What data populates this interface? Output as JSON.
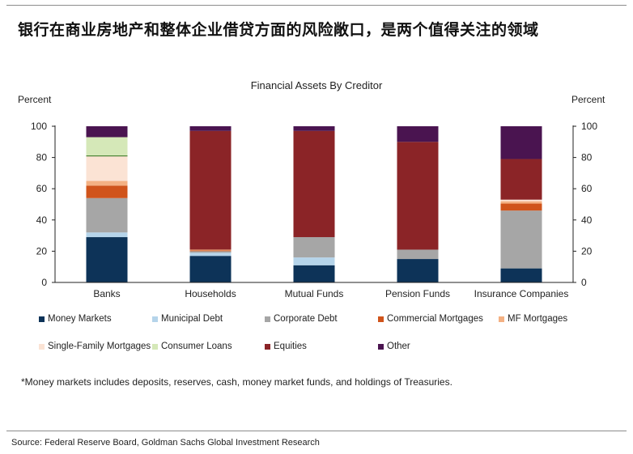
{
  "page": {
    "title": "银行在商业房地产和整体企业借贷方面的风险敞口，是两个值得关注的领域",
    "footnote": "*Money markets includes deposits, reserves, cash, money market funds, and holdings of Treasuries.",
    "source": "Source: Federal Reserve Board, Goldman Sachs Global Investment Research"
  },
  "chart_data": {
    "type": "bar",
    "stacked": true,
    "title": "Financial Assets By Creditor",
    "ylabel_left": "Percent",
    "ylabel_right": "Percent",
    "ylim": [
      0,
      100
    ],
    "yticks": [
      "0",
      "20",
      "40",
      "60",
      "80",
      "100"
    ],
    "grid": false,
    "legend_position": "bottom",
    "categories": [
      "Banks",
      "Households",
      "Mutual Funds",
      "Pension Funds",
      "Insurance Companies"
    ],
    "series": [
      {
        "name": "Money Markets",
        "color": "#0d3358",
        "values": [
          29,
          17,
          11,
          15,
          9
        ]
      },
      {
        "name": "Municipal Debt",
        "color": "#b5d4ea",
        "values": [
          3,
          2,
          5,
          0,
          0
        ]
      },
      {
        "name": "Corporate Debt",
        "color": "#a6a6a6",
        "values": [
          22,
          1,
          13,
          6,
          37
        ]
      },
      {
        "name": "Commercial Mortgages",
        "color": "#d0541b",
        "values": [
          8,
          0.5,
          0,
          0,
          4.5
        ]
      },
      {
        "name": "MF Mortgages",
        "color": "#f4b183",
        "values": [
          3,
          0.5,
          0,
          0,
          1.5
        ]
      },
      {
        "name": "Single-Family Mortgages",
        "color": "#fbe3d4",
        "values": [
          16,
          0,
          0,
          0,
          1
        ]
      },
      {
        "name": "Consumer Loans",
        "color": "#d5e8b8",
        "values": [
          12,
          0,
          0,
          0,
          0
        ]
      },
      {
        "name": "Equities",
        "color": "#8b2427",
        "values": [
          0,
          76,
          68,
          69,
          26
        ]
      },
      {
        "name": "Other",
        "color": "#4a1450",
        "values": [
          7,
          3,
          3,
          10,
          21
        ]
      }
    ]
  }
}
